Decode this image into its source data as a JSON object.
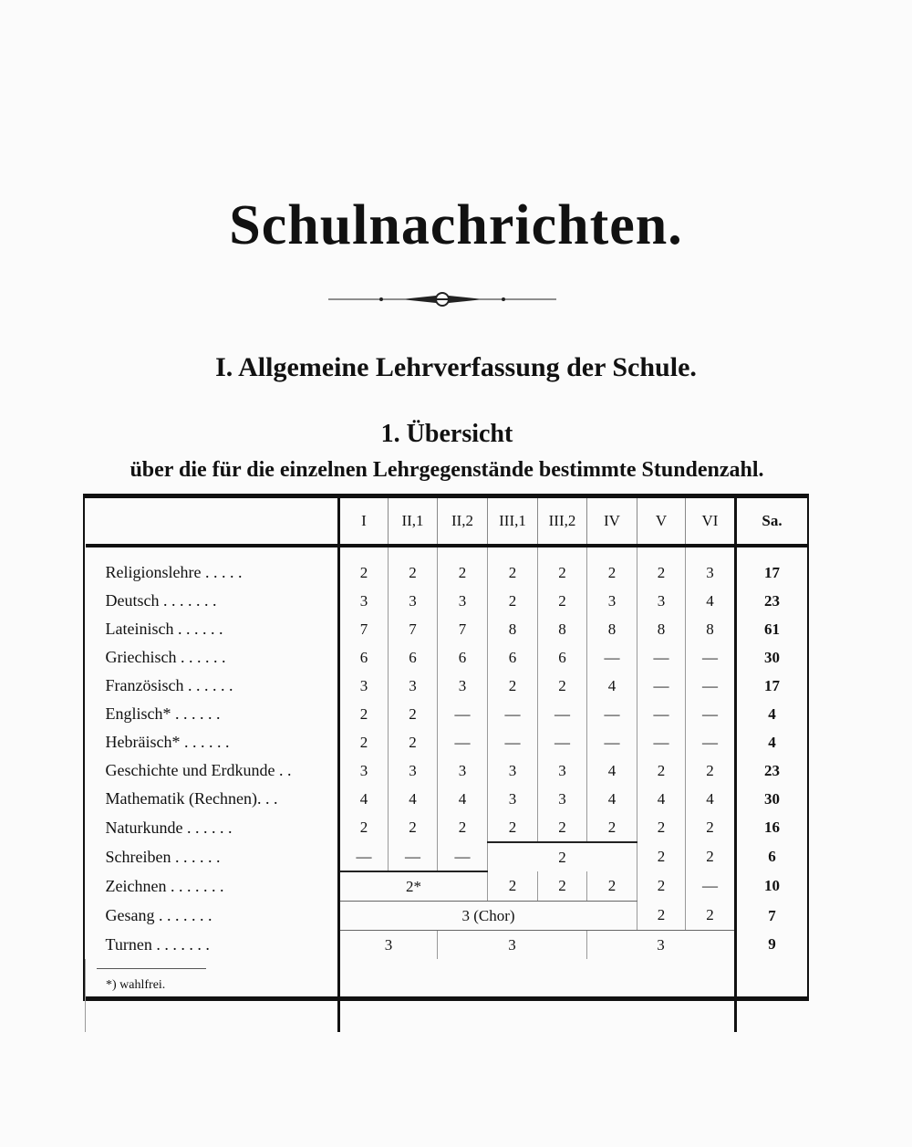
{
  "title": "Schulnachrichten.",
  "section": "I. Allgemeine Lehrverfassung der Schule.",
  "subtitle_1": "1. Übersicht",
  "subtitle_2": "über die für die einzelnen Lehrgegenstände bestimmte Stundenzahl.",
  "table": {
    "columns": [
      "",
      "I",
      "II,1",
      "II,2",
      "III,1",
      "III,2",
      "IV",
      "V",
      "VI",
      "Sa."
    ],
    "rows": [
      {
        "subject": "Religionslehre . . . . .",
        "cells": [
          {
            "v": "2"
          },
          {
            "v": "2"
          },
          {
            "v": "2"
          },
          {
            "v": "2"
          },
          {
            "v": "2"
          },
          {
            "v": "2"
          },
          {
            "v": "2"
          },
          {
            "v": "3"
          }
        ],
        "total": "17"
      },
      {
        "subject": "Deutsch . . . . . . .",
        "cells": [
          {
            "v": "3"
          },
          {
            "v": "3"
          },
          {
            "v": "3"
          },
          {
            "v": "2"
          },
          {
            "v": "2"
          },
          {
            "v": "3"
          },
          {
            "v": "3"
          },
          {
            "v": "4"
          }
        ],
        "total": "23"
      },
      {
        "subject": "Lateinisch . . . . . .",
        "cells": [
          {
            "v": "7"
          },
          {
            "v": "7"
          },
          {
            "v": "7"
          },
          {
            "v": "8"
          },
          {
            "v": "8"
          },
          {
            "v": "8"
          },
          {
            "v": "8"
          },
          {
            "v": "8"
          }
        ],
        "total": "61"
      },
      {
        "subject": "Griechisch . . . . . .",
        "cells": [
          {
            "v": "6"
          },
          {
            "v": "6"
          },
          {
            "v": "6"
          },
          {
            "v": "6"
          },
          {
            "v": "6"
          },
          {
            "v": "—"
          },
          {
            "v": "—"
          },
          {
            "v": "—"
          }
        ],
        "total": "30"
      },
      {
        "subject": "Französisch . . . . . .",
        "cells": [
          {
            "v": "3"
          },
          {
            "v": "3"
          },
          {
            "v": "3"
          },
          {
            "v": "2"
          },
          {
            "v": "2"
          },
          {
            "v": "4"
          },
          {
            "v": "—"
          },
          {
            "v": "—"
          }
        ],
        "total": "17"
      },
      {
        "subject": "Englisch* . . . . . .",
        "cells": [
          {
            "v": "2"
          },
          {
            "v": "2"
          },
          {
            "v": "—"
          },
          {
            "v": "—"
          },
          {
            "v": "—"
          },
          {
            "v": "—"
          },
          {
            "v": "—"
          },
          {
            "v": "—"
          }
        ],
        "total": "4"
      },
      {
        "subject": "Hebräisch* . . . . . .",
        "cells": [
          {
            "v": "2"
          },
          {
            "v": "2"
          },
          {
            "v": "—"
          },
          {
            "v": "—"
          },
          {
            "v": "—"
          },
          {
            "v": "—"
          },
          {
            "v": "—"
          },
          {
            "v": "—"
          }
        ],
        "total": "4"
      },
      {
        "subject": "Geschichte und Erdkunde . .",
        "cells": [
          {
            "v": "3"
          },
          {
            "v": "3"
          },
          {
            "v": "3"
          },
          {
            "v": "3"
          },
          {
            "v": "3"
          },
          {
            "v": "4"
          },
          {
            "v": "2"
          },
          {
            "v": "2"
          }
        ],
        "total": "23"
      },
      {
        "subject": "Mathematik (Rechnen). . .",
        "cells": [
          {
            "v": "4"
          },
          {
            "v": "4"
          },
          {
            "v": "4"
          },
          {
            "v": "3"
          },
          {
            "v": "3"
          },
          {
            "v": "4"
          },
          {
            "v": "4"
          },
          {
            "v": "4"
          }
        ],
        "total": "30"
      },
      {
        "subject": "Naturkunde . . . . . .",
        "cells": [
          {
            "v": "2"
          },
          {
            "v": "2"
          },
          {
            "v": "2"
          },
          {
            "v": "2"
          },
          {
            "v": "2"
          },
          {
            "v": "2"
          },
          {
            "v": "2"
          },
          {
            "v": "2"
          }
        ],
        "total": "16"
      },
      {
        "subject": "Schreiben . . . . . .",
        "cells": [
          {
            "v": "—"
          },
          {
            "v": "—"
          },
          {
            "v": "—"
          },
          {
            "v": "2",
            "span": 3
          },
          {
            "v": "2"
          },
          {
            "v": "2"
          }
        ],
        "total": "6"
      },
      {
        "subject": "Zeichnen . . . . . . .",
        "cells": [
          {
            "v": "2*",
            "span": 3
          },
          {
            "v": "2"
          },
          {
            "v": "2"
          },
          {
            "v": "2"
          },
          {
            "v": "2"
          },
          {
            "v": "—"
          }
        ],
        "total": "10"
      },
      {
        "subject": "Gesang . . . . . . .",
        "cells": [
          {
            "v": "3 (Chor)",
            "span": 6
          },
          {
            "v": "2"
          },
          {
            "v": "2"
          }
        ],
        "total": "7"
      },
      {
        "subject": "Turnen . . . . . . .",
        "cells": [
          {
            "v": "3",
            "span": 2
          },
          {
            "v": "3",
            "span": 3
          },
          {
            "v": "3",
            "span": 3
          }
        ],
        "total": "9"
      }
    ],
    "footnote": "*) wahlfrei."
  }
}
